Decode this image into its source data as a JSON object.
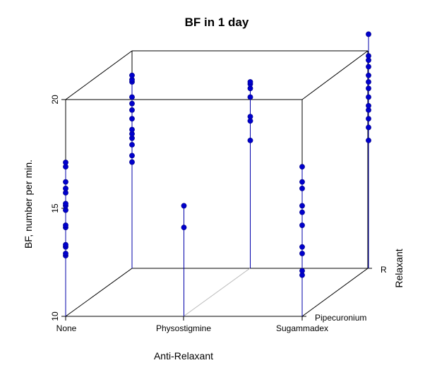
{
  "chart_data": {
    "type": "scatter3d",
    "title": "BF in 1 day",
    "xlabel": "Anti-Relaxant",
    "ylabel": "Relaxant",
    "zlabel": "BF, number per min.",
    "x_ticks": [
      "None",
      "Physostigmine",
      "Sugammadex"
    ],
    "y_ticks": [
      "Pipecuronium",
      "R"
    ],
    "z_ticks": [
      "10",
      "15",
      "20"
    ],
    "zlim": [
      10,
      20
    ],
    "grid": false,
    "colors": {
      "points": "#0000cc",
      "stems": "#0000aa",
      "box": "#000000",
      "floor_diagonal": "#bbbbbb"
    },
    "series": [
      {
        "x": "None",
        "y": "Pipecuronium",
        "values": [
          12.8,
          12.9,
          13.2,
          13.3,
          14.1,
          14.2,
          14.9,
          15.1,
          15.2,
          15.7,
          15.9,
          16.2,
          16.9,
          17.1
        ]
      },
      {
        "x": "None",
        "y": "R",
        "values": [
          14.9,
          15.2,
          15.7,
          16.0,
          16.2,
          16.4,
          16.9,
          17.3,
          17.6,
          17.9,
          18.6,
          18.7,
          18.9
        ]
      },
      {
        "x": "Physostigmine",
        "y": "Pipecuronium",
        "values": [
          14.1,
          15.1
        ]
      },
      {
        "x": "Physostigmine",
        "y": "R",
        "values": [
          15.9,
          16.8,
          17.0,
          17.9,
          18.3,
          18.5,
          18.6
        ]
      },
      {
        "x": "Sugammadex",
        "y": "Pipecuronium",
        "values": [
          11.9,
          12.1,
          12.9,
          13.2,
          14.2,
          14.8,
          15.1,
          15.9,
          16.2,
          16.9
        ]
      },
      {
        "x": "Sugammadex",
        "y": "R",
        "values": [
          15.9,
          16.5,
          16.9,
          17.3,
          17.5,
          17.9,
          18.3,
          18.6,
          18.9,
          19.3,
          19.6,
          19.8,
          20.8
        ]
      }
    ]
  }
}
